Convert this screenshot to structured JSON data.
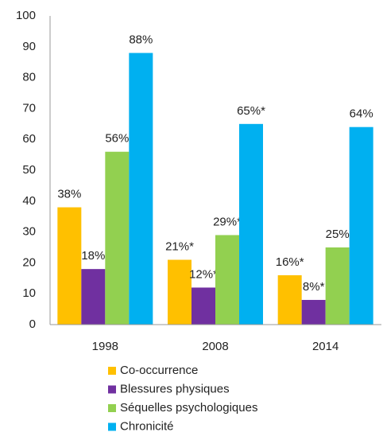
{
  "chart_data": {
    "type": "bar",
    "categories": [
      "1998",
      "2008",
      "2014"
    ],
    "series": [
      {
        "name": "Co-occurrence",
        "color": "#FFC000",
        "values": [
          38,
          21,
          16
        ],
        "value_labels": [
          "38%",
          "21%*",
          "16%*"
        ]
      },
      {
        "name": "Blessures physiques",
        "color": "#7030A0",
        "values": [
          18,
          12,
          8
        ],
        "value_labels": [
          "18%",
          "12%*",
          "8%*"
        ]
      },
      {
        "name": "Séquelles psychologiques",
        "color": "#92D050",
        "values": [
          56,
          29,
          25
        ],
        "value_labels": [
          "56%",
          "29%*",
          "25%"
        ]
      },
      {
        "name": "Chronicité",
        "color": "#00B0F0",
        "values": [
          88,
          65,
          64
        ],
        "value_labels": [
          "88%",
          "65%*",
          "64%"
        ]
      }
    ],
    "ylim": [
      0,
      100
    ],
    "yticks": [
      0,
      10,
      20,
      30,
      40,
      50,
      60,
      70,
      80,
      90,
      100
    ],
    "grid": false,
    "legend": "bottom"
  }
}
